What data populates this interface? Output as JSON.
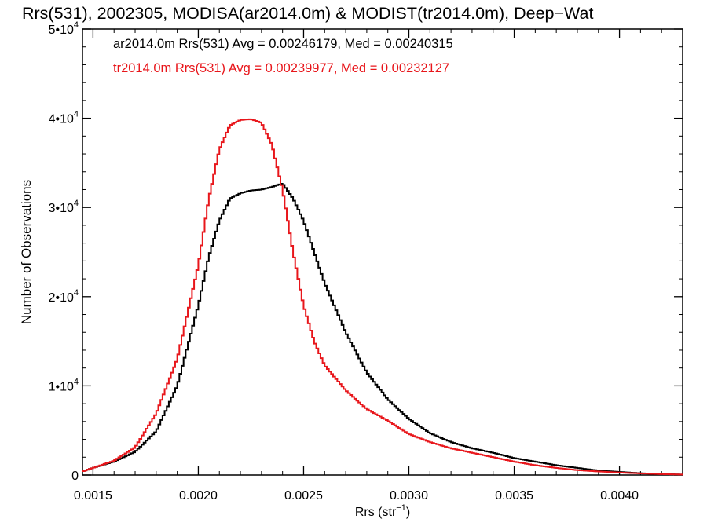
{
  "chart_data": {
    "type": "line",
    "title": "Rrs(531), 2002305, MODISA(ar2014.0m) & MODIST(tr2014.0m), Deep−Wat",
    "xlabel": "Rrs (str",
    "xlabel_sup": "−1",
    "xlabel_end": ")",
    "ylabel": "Number of Observations",
    "xlim": [
      0.00145,
      0.0043
    ],
    "ylim": [
      0,
      50000
    ],
    "x_ticks": [
      0.0015,
      0.002,
      0.0025,
      0.003,
      0.0035,
      0.004
    ],
    "x_tick_labels": [
      "0.0015",
      "0.0020",
      "0.0025",
      "0.0030",
      "0.0035",
      "0.0040"
    ],
    "y_ticks": [
      0,
      10000,
      20000,
      30000,
      40000,
      50000
    ],
    "y_tick_labels": [
      {
        "base": "0",
        "exp": ""
      },
      {
        "base": "1•10",
        "exp": "4"
      },
      {
        "base": "2•10",
        "exp": "4"
      },
      {
        "base": "3•10",
        "exp": "4"
      },
      {
        "base": "4•10",
        "exp": "4"
      },
      {
        "base": "5•10",
        "exp": "4"
      }
    ],
    "annotations": [
      {
        "text": "ar2014.0m Rrs(531) Avg = 0.00246179, Med = 0.00240315",
        "color": "#000000"
      },
      {
        "text": "tr2014.0m Rrs(531) Avg = 0.00239977, Med = 0.00232127",
        "color": "#e8161b"
      }
    ],
    "series": [
      {
        "name": "ar2014.0m",
        "color": "#000000",
        "x": [
          0.00145,
          0.0015,
          0.0016,
          0.0017,
          0.0018,
          0.0019,
          0.002,
          0.00205,
          0.0021,
          0.00215,
          0.0022,
          0.00225,
          0.0023,
          0.00235,
          0.0024,
          0.00245,
          0.0025,
          0.00255,
          0.0026,
          0.0027,
          0.0028,
          0.0029,
          0.003,
          0.0031,
          0.0032,
          0.0033,
          0.0034,
          0.0035,
          0.0036,
          0.0037,
          0.0038,
          0.0039,
          0.004,
          0.0041,
          0.0042,
          0.0043
        ],
        "y": [
          400,
          800,
          1500,
          2600,
          4900,
          10000,
          19000,
          24500,
          28500,
          31000,
          31600,
          31900,
          32000,
          32300,
          32700,
          31000,
          28500,
          25000,
          21500,
          16000,
          11500,
          8500,
          6300,
          4700,
          3700,
          3000,
          2500,
          1900,
          1500,
          1100,
          800,
          500,
          350,
          200,
          100,
          50
        ]
      },
      {
        "name": "tr2014.0m",
        "color": "#e8161b",
        "x": [
          0.00145,
          0.0015,
          0.0016,
          0.0017,
          0.0018,
          0.0019,
          0.002,
          0.00205,
          0.0021,
          0.00215,
          0.0022,
          0.00225,
          0.0023,
          0.00235,
          0.0024,
          0.00245,
          0.0025,
          0.00255,
          0.0026,
          0.0027,
          0.0028,
          0.0029,
          0.003,
          0.0031,
          0.0032,
          0.0033,
          0.0034,
          0.0035,
          0.0036,
          0.0037,
          0.0038,
          0.0039,
          0.004,
          0.0041,
          0.0042,
          0.0043
        ],
        "y": [
          400,
          800,
          1600,
          3100,
          6900,
          13000,
          23500,
          31000,
          36500,
          39200,
          39800,
          39900,
          39500,
          37000,
          32000,
          25000,
          19000,
          15000,
          12300,
          9500,
          7400,
          6100,
          4600,
          3700,
          3000,
          2500,
          2000,
          1500,
          1100,
          800,
          550,
          400,
          280,
          180,
          100,
          50
        ]
      }
    ],
    "grid": false,
    "legend": "top-left text annotations"
  }
}
